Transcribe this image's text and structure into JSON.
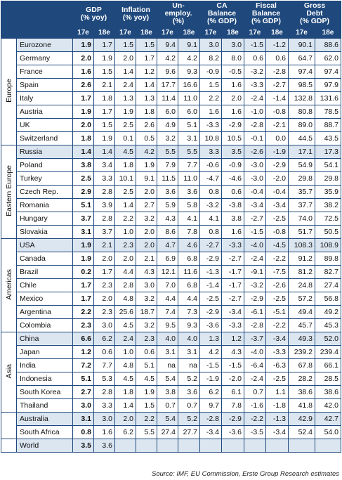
{
  "header": {
    "region_label": "",
    "columns": [
      [
        "GDP",
        "(% yoy)"
      ],
      [
        "Inflation",
        "(% yoy)"
      ],
      [
        "Un-",
        "employ.",
        "(%)"
      ],
      [
        "CA",
        "Balance",
        "(% GDP)"
      ],
      [
        "Fiscal",
        "Balance",
        "(% GDP)"
      ],
      [
        "Gross",
        "Debt",
        "(% GDP)"
      ]
    ],
    "years": [
      "17e",
      "18e"
    ]
  },
  "groups": [
    {
      "region": "Europe",
      "rows": [
        [
          "Eurozone",
          "1.9",
          "1.7",
          "1.5",
          "1.5",
          "9.4",
          "9.1",
          "3.0",
          "3.0",
          "-1.5",
          "-1.2",
          "90.1",
          "88.6"
        ],
        [
          "Germany",
          "2.0",
          "1.9",
          "2.0",
          "1.7",
          "4.2",
          "4.2",
          "8.2",
          "8.0",
          "0.6",
          "0.6",
          "64.7",
          "62.0"
        ],
        [
          "France",
          "1.6",
          "1.5",
          "1.4",
          "1.2",
          "9.6",
          "9.3",
          "-0.9",
          "-0.5",
          "-3.2",
          "-2.8",
          "97.4",
          "97.4"
        ],
        [
          "Spain",
          "2.6",
          "2.1",
          "2.4",
          "1.4",
          "17.7",
          "16.6",
          "1.5",
          "1.6",
          "-3.3",
          "-2.7",
          "98.5",
          "97.9"
        ],
        [
          "Italy",
          "1.7",
          "1.8",
          "1.3",
          "1.3",
          "11.4",
          "11.0",
          "2.2",
          "2.0",
          "-2.4",
          "-1.4",
          "132.8",
          "131.6"
        ],
        [
          "Austria",
          "1.9",
          "1.7",
          "1.9",
          "1.8",
          "6.0",
          "6.0",
          "1.6",
          "1.6",
          "-1.0",
          "-0.8",
          "80.8",
          "78.5"
        ],
        [
          "UK",
          "2.0",
          "1.5",
          "2.5",
          "2.6",
          "4.9",
          "5.1",
          "-3.3",
          "-2.9",
          "-2.8",
          "-2.1",
          "89.0",
          "88.7"
        ],
        [
          "Switzerland",
          "1.8",
          "1.9",
          "0.1",
          "0.5",
          "3.2",
          "3.1",
          "10.8",
          "10.5",
          "-0.1",
          "0.0",
          "44.5",
          "43.5"
        ]
      ]
    },
    {
      "region": "Eastern Europe",
      "rows": [
        [
          "Russia",
          "1.4",
          "1.4",
          "4.5",
          "4.2",
          "5.5",
          "5.5",
          "3.3",
          "3.5",
          "-2.6",
          "-1.9",
          "17.1",
          "17.3"
        ],
        [
          "Poland",
          "3.8",
          "3.4",
          "1.8",
          "1.9",
          "7.9",
          "7.7",
          "-0.6",
          "-0.9",
          "-3.0",
          "-2.9",
          "54.9",
          "54.1"
        ],
        [
          "Turkey",
          "2.5",
          "3.3",
          "10.1",
          "9.1",
          "11.5",
          "11.0",
          "-4.7",
          "-4.6",
          "-3.0",
          "-2.0",
          "29.8",
          "29.8"
        ],
        [
          "Czech Rep.",
          "2.9",
          "2.8",
          "2.5",
          "2.0",
          "3.6",
          "3.6",
          "0.8",
          "0.6",
          "-0.4",
          "-0.4",
          "35.7",
          "35.9"
        ],
        [
          "Romania",
          "5.1",
          "3.9",
          "1.4",
          "2.7",
          "5.9",
          "5.8",
          "-3.2",
          "-3.8",
          "-3.4",
          "-3.4",
          "37.7",
          "38.2"
        ],
        [
          "Hungary",
          "3.7",
          "2.8",
          "2.2",
          "3.2",
          "4.3",
          "4.1",
          "4.1",
          "3.8",
          "-2.7",
          "-2.5",
          "74.0",
          "72.5"
        ],
        [
          "Slovakia",
          "3.1",
          "3.7",
          "1.0",
          "2.0",
          "8.6",
          "7.8",
          "0.8",
          "1.6",
          "-1.5",
          "-0.8",
          "51.7",
          "50.5"
        ]
      ]
    },
    {
      "region": "Americas",
      "rows": [
        [
          "USA",
          "1.9",
          "2.1",
          "2.3",
          "2.0",
          "4.7",
          "4.6",
          "-2.7",
          "-3.3",
          "-4.0",
          "-4.5",
          "108.3",
          "108.9"
        ],
        [
          "Canada",
          "1.9",
          "2.0",
          "2.0",
          "2.1",
          "6.9",
          "6.8",
          "-2.9",
          "-2.7",
          "-2.4",
          "-2.2",
          "91.2",
          "89.8"
        ],
        [
          "Brazil",
          "0.2",
          "1.7",
          "4.4",
          "4.3",
          "12.1",
          "11.6",
          "-1.3",
          "-1.7",
          "-9.1",
          "-7.5",
          "81.2",
          "82.7"
        ],
        [
          "Chile",
          "1.7",
          "2.3",
          "2.8",
          "3.0",
          "7.0",
          "6.8",
          "-1.4",
          "-1.7",
          "-3.2",
          "-2.6",
          "24.8",
          "27.4"
        ],
        [
          "Mexico",
          "1.7",
          "2.0",
          "4.8",
          "3.2",
          "4.4",
          "4.4",
          "-2.5",
          "-2.7",
          "-2.9",
          "-2.5",
          "57.2",
          "56.8"
        ],
        [
          "Argentina",
          "2.2",
          "2.3",
          "25.6",
          "18.7",
          "7.4",
          "7.3",
          "-2.9",
          "-3.4",
          "-6.1",
          "-5.1",
          "49.4",
          "49.2"
        ],
        [
          "Colombia",
          "2.3",
          "3.0",
          "4.5",
          "3.2",
          "9.5",
          "9.3",
          "-3.6",
          "-3.3",
          "-2.8",
          "-2.2",
          "45.7",
          "45.3"
        ]
      ]
    },
    {
      "region": "Asia",
      "rows": [
        [
          "China",
          "6.6",
          "6.2",
          "2.4",
          "2.3",
          "4.0",
          "4.0",
          "1.3",
          "1.2",
          "-3.7",
          "-3.4",
          "49.3",
          "52.0"
        ],
        [
          "Japan",
          "1.2",
          "0.6",
          "1.0",
          "0.6",
          "3.1",
          "3.1",
          "4.2",
          "4.3",
          "-4.0",
          "-3.3",
          "239.2",
          "239.4"
        ],
        [
          "India",
          "7.2",
          "7.7",
          "4.8",
          "5.1",
          "na",
          "na",
          "-1.5",
          "-1.5",
          "-6.4",
          "-6.3",
          "67.8",
          "66.1"
        ],
        [
          "Indonesia",
          "5.1",
          "5.3",
          "4.5",
          "4.5",
          "5.4",
          "5.2",
          "-1.9",
          "-2.0",
          "-2.4",
          "-2.5",
          "28.2",
          "28.5"
        ],
        [
          "South Korea",
          "2.7",
          "2.8",
          "1.8",
          "1.9",
          "3.8",
          "3.6",
          "6.2",
          "6.1",
          "0.7",
          "1.1",
          "38.6",
          "38.6"
        ],
        [
          "Thailand",
          "3.0",
          "3.3",
          "1.4",
          "1.5",
          "0.7",
          "0.7",
          "9.7",
          "7.8",
          "-1.6",
          "-1.8",
          "41.8",
          "42.0"
        ]
      ]
    },
    {
      "rows": [
        [
          "Australia",
          "3.1",
          "3.0",
          "2.0",
          "2.2",
          "5.4",
          "5.2",
          "-2.8",
          "-2.9",
          "-2.2",
          "-1.3",
          "42.9",
          "42.7"
        ],
        [
          "South Africa",
          "0.8",
          "1.6",
          "6.2",
          "5.5",
          "27.4",
          "27.7",
          "-3.4",
          "-3.6",
          "-3.5",
          "-3.4",
          "52.4",
          "54.0"
        ]
      ]
    },
    {
      "rows": [
        [
          "World",
          "3.5",
          "3.6"
        ]
      ]
    }
  ],
  "source": "Source: IMF, EU Commission, Erste Group Research estimates"
}
